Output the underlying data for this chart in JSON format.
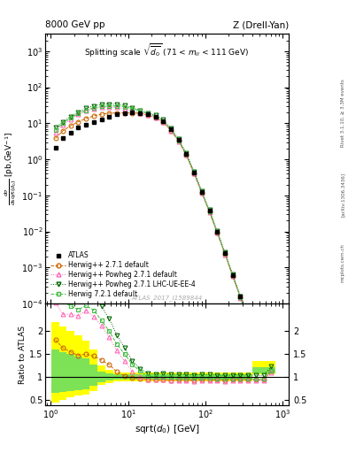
{
  "title_left": "8000 GeV pp",
  "title_right": "Z (Drell-Yan)",
  "plot_title": "Splitting scale $\\sqrt{\\overline{d_0}}$ (71 < m$_{ll}$ < 111 GeV)",
  "ylabel_main": "$\\frac{d\\sigma}{d\\mathrm{sqrt}(d_0)}$ [pb,GeV$^{-1}$]",
  "ylabel_ratio": "Ratio to ATLAS",
  "xlabel": "sqrt{d_0} [GeV]",
  "watermark": "ATLAS_2017_I1589844",
  "xlim": [
    0.85,
    1200
  ],
  "ylim_main": [
    0.0001,
    3000
  ],
  "ylim_ratio": [
    0.38,
    2.6
  ],
  "x_atlas": [
    1.15,
    1.44,
    1.81,
    2.27,
    2.86,
    3.6,
    4.53,
    5.7,
    7.17,
    9.02,
    11.35,
    14.28,
    17.97,
    22.61,
    28.45,
    35.79,
    45.05,
    56.68,
    71.31,
    89.75,
    112.9,
    142.1,
    178.9,
    225.1,
    283.4,
    356.8,
    449.0,
    565.0,
    711.4
  ],
  "y_atlas": [
    2.1,
    3.8,
    5.5,
    7.5,
    9.0,
    11.0,
    13.0,
    15.0,
    17.5,
    19.0,
    20.0,
    19.5,
    18.0,
    15.5,
    11.5,
    6.8,
    3.4,
    1.4,
    0.44,
    0.125,
    0.037,
    0.0098,
    0.00255,
    0.00062,
    0.000155,
    3.6e-05,
    7.2e-06,
    1.55e-06,
    2.2e-07
  ],
  "x_hw1": [
    1.15,
    1.44,
    1.81,
    2.27,
    2.86,
    3.6,
    4.53,
    5.7,
    7.17,
    9.02,
    11.35,
    14.28,
    17.97,
    22.61,
    28.45,
    35.79,
    45.05,
    56.68,
    71.31,
    89.75,
    112.9,
    142.1,
    178.9,
    225.1,
    283.4,
    356.8,
    449.0,
    565.0,
    711.4
  ],
  "y_hw1": [
    3.8,
    6.2,
    8.5,
    11.0,
    13.5,
    16.0,
    17.8,
    19.0,
    19.5,
    19.5,
    19.5,
    18.8,
    17.0,
    14.5,
    10.8,
    6.3,
    3.2,
    1.32,
    0.41,
    0.118,
    0.035,
    0.0092,
    0.00238,
    0.00059,
    0.000147,
    3.4e-05,
    6.8e-06,
    1.45e-06,
    2.5e-07
  ],
  "x_hw2": [
    1.15,
    1.44,
    1.81,
    2.27,
    2.86,
    3.6,
    4.53,
    5.7,
    7.17,
    9.02,
    11.35,
    14.28,
    17.97,
    22.61,
    28.45,
    35.79,
    45.05,
    56.68,
    71.31,
    89.75,
    112.9,
    142.1,
    178.9,
    225.1,
    283.4,
    356.8,
    449.0,
    565.0,
    711.4
  ],
  "y_hw2": [
    5.5,
    9.0,
    13.0,
    17.5,
    22.0,
    25.5,
    27.5,
    28.0,
    27.5,
    25.5,
    22.5,
    19.5,
    17.0,
    14.5,
    10.8,
    6.3,
    3.15,
    1.3,
    0.4,
    0.115,
    0.034,
    0.009,
    0.0023,
    0.00057,
    0.000143,
    3.3e-05,
    6.6e-06,
    1.42e-06,
    2.4e-07
  ],
  "x_hw3": [
    1.15,
    1.44,
    1.81,
    2.27,
    2.86,
    3.6,
    4.53,
    5.7,
    7.17,
    9.02,
    11.35,
    14.28,
    17.97,
    22.61,
    28.45,
    35.79,
    45.05,
    56.68,
    71.31,
    89.75,
    112.9,
    142.1,
    178.9,
    225.1,
    283.4,
    356.8,
    449.0,
    565.0,
    711.4
  ],
  "y_hw3": [
    7.5,
    11.0,
    15.5,
    20.5,
    26.0,
    30.5,
    33.0,
    34.0,
    33.5,
    31.0,
    27.0,
    23.0,
    19.5,
    16.5,
    12.5,
    7.2,
    3.6,
    1.48,
    0.46,
    0.132,
    0.039,
    0.0102,
    0.00263,
    0.00065,
    0.000162,
    3.75e-05,
    7.5e-06,
    1.6e-06,
    2.7e-07
  ],
  "x_hw4": [
    1.15,
    1.44,
    1.81,
    2.27,
    2.86,
    3.6,
    4.53,
    5.7,
    7.17,
    9.02,
    11.35,
    14.28,
    17.97,
    22.61,
    28.45,
    35.79,
    45.05,
    56.68,
    71.31,
    89.75,
    112.9,
    142.1,
    178.9,
    225.1,
    283.4,
    356.8,
    449.0,
    565.0,
    711.4
  ],
  "y_hw4": [
    6.5,
    10.0,
    14.0,
    18.5,
    23.0,
    27.0,
    29.0,
    30.0,
    30.0,
    28.5,
    25.5,
    22.0,
    18.5,
    15.5,
    11.5,
    6.8,
    3.35,
    1.38,
    0.43,
    0.122,
    0.036,
    0.0095,
    0.00245,
    0.0006,
    0.00015,
    3.45e-05,
    6.9e-06,
    1.48e-06,
    2.5e-07
  ],
  "color_hw1": "#cc6600",
  "color_hw2": "#ff69b4",
  "color_hw3": "#006600",
  "color_hw4": "#44bb44",
  "legend_labels": [
    "ATLAS",
    "Herwig++ 2.7.1 default",
    "Herwig++ Powheg 2.7.1 default",
    "Herwig++ Powheg 2.7.1 LHC-UE-EE-4",
    "Herwig 7.2.1 default"
  ],
  "ratio_yticks": [
    0.5,
    1.0,
    1.5,
    2.0
  ],
  "ratio_yticklabels": [
    "0.5",
    "1",
    "1.5",
    "2"
  ]
}
